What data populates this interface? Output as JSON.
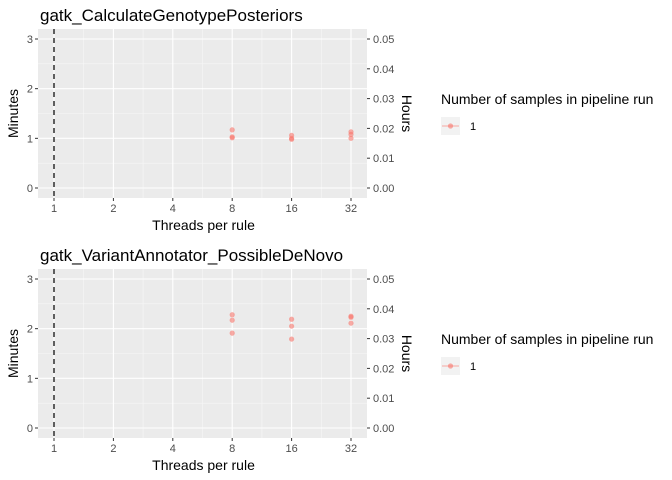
{
  "chart_data": [
    {
      "type": "scatter",
      "title": "gatk_CalculateGenotypePosteriors",
      "xlabel": "Threads per rule",
      "ylabel": "Minutes",
      "y2label": "Hours",
      "x_scale": "log2",
      "x_ticks": [
        1,
        2,
        4,
        8,
        16,
        32
      ],
      "x_tick_labels": [
        "1",
        "2",
        "4",
        "8",
        "16",
        "32"
      ],
      "ylim": [
        0,
        3
      ],
      "y_ticks": [
        0,
        1,
        2,
        3
      ],
      "y_tick_labels": [
        "0",
        "1",
        "2",
        "3"
      ],
      "y2lim": [
        0,
        0.05
      ],
      "y2_ticks": [
        0,
        0.01,
        0.02,
        0.03,
        0.04,
        0.05
      ],
      "y2_tick_labels": [
        "0.00",
        "0.01",
        "0.02",
        "0.03",
        "0.04",
        "0.05"
      ],
      "vline_x": 1,
      "grid": true,
      "legend_position": "right",
      "legend_title": "Number of samples in pipeline run",
      "series": [
        {
          "name": "1",
          "color": "#F8766D",
          "points": [
            {
              "x": 8,
              "y": 1.17
            },
            {
              "x": 8,
              "y": 1.03
            },
            {
              "x": 8,
              "y": 1.01
            },
            {
              "x": 16,
              "y": 1.06
            },
            {
              "x": 16,
              "y": 1.0
            },
            {
              "x": 16,
              "y": 0.98
            },
            {
              "x": 32,
              "y": 1.13
            },
            {
              "x": 32,
              "y": 1.08
            },
            {
              "x": 32,
              "y": 1.0
            }
          ]
        }
      ]
    },
    {
      "type": "scatter",
      "title": "gatk_VariantAnnotator_PossibleDeNovo",
      "xlabel": "Threads per rule",
      "ylabel": "Minutes",
      "y2label": "Hours",
      "x_scale": "log2",
      "x_ticks": [
        1,
        2,
        4,
        8,
        16,
        32
      ],
      "x_tick_labels": [
        "1",
        "2",
        "4",
        "8",
        "16",
        "32"
      ],
      "ylim": [
        0,
        3
      ],
      "y_ticks": [
        0,
        1,
        2,
        3
      ],
      "y_tick_labels": [
        "0",
        "1",
        "2",
        "3"
      ],
      "y2lim": [
        0,
        0.05
      ],
      "y2_ticks": [
        0,
        0.01,
        0.02,
        0.03,
        0.04,
        0.05
      ],
      "y2_tick_labels": [
        "0.00",
        "0.01",
        "0.02",
        "0.03",
        "0.04",
        "0.05"
      ],
      "vline_x": 1,
      "grid": true,
      "legend_position": "right",
      "legend_title": "Number of samples in pipeline run",
      "series": [
        {
          "name": "1",
          "color": "#F8766D",
          "points": [
            {
              "x": 8,
              "y": 2.28
            },
            {
              "x": 8,
              "y": 2.17
            },
            {
              "x": 8,
              "y": 1.91
            },
            {
              "x": 16,
              "y": 2.19
            },
            {
              "x": 16,
              "y": 2.05
            },
            {
              "x": 16,
              "y": 1.79
            },
            {
              "x": 32,
              "y": 2.25
            },
            {
              "x": 32,
              "y": 2.23
            },
            {
              "x": 32,
              "y": 2.11
            }
          ]
        }
      ]
    }
  ]
}
